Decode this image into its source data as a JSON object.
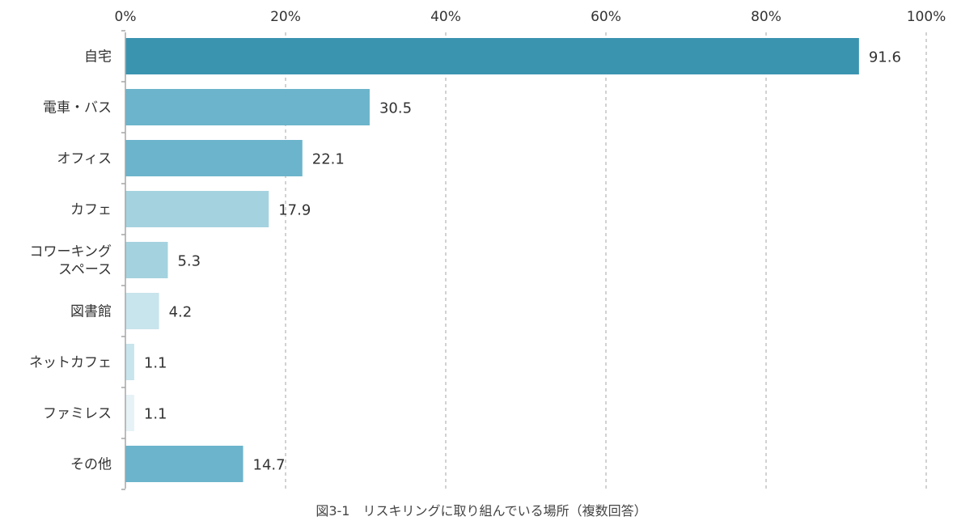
{
  "chart_data": {
    "type": "bar",
    "orientation": "horizontal",
    "x_ticks": [
      "0%",
      "20%",
      "40%",
      "60%",
      "80%",
      "100%"
    ],
    "xlim": [
      0,
      100
    ],
    "grid": true,
    "categories": [
      [
        "自宅"
      ],
      [
        "電車・バス"
      ],
      [
        "オフィス"
      ],
      [
        "カフェ"
      ],
      [
        "コワーキング",
        "スペース"
      ],
      [
        "図書館"
      ],
      [
        "ネットカフェ"
      ],
      [
        "ファミレス"
      ],
      [
        "その他"
      ]
    ],
    "values": [
      91.6,
      30.5,
      22.1,
      17.9,
      5.3,
      4.2,
      1.1,
      1.1,
      14.7
    ],
    "value_labels": [
      "91.6",
      "30.5",
      "22.1",
      "17.9",
      "5.3",
      "4.2",
      "1.1",
      "1.1",
      "14.7"
    ],
    "bar_colors": [
      "#3a94b0",
      "#6bb4cb",
      "#6bb4cb",
      "#a5d2df",
      "#a5d2df",
      "#c8e4ec",
      "#c8e4ec",
      "#e6f2f6",
      "#6bb4cb"
    ],
    "caption": "図3-1　リスキリングに取り組んでいる場所（複数回答）"
  }
}
